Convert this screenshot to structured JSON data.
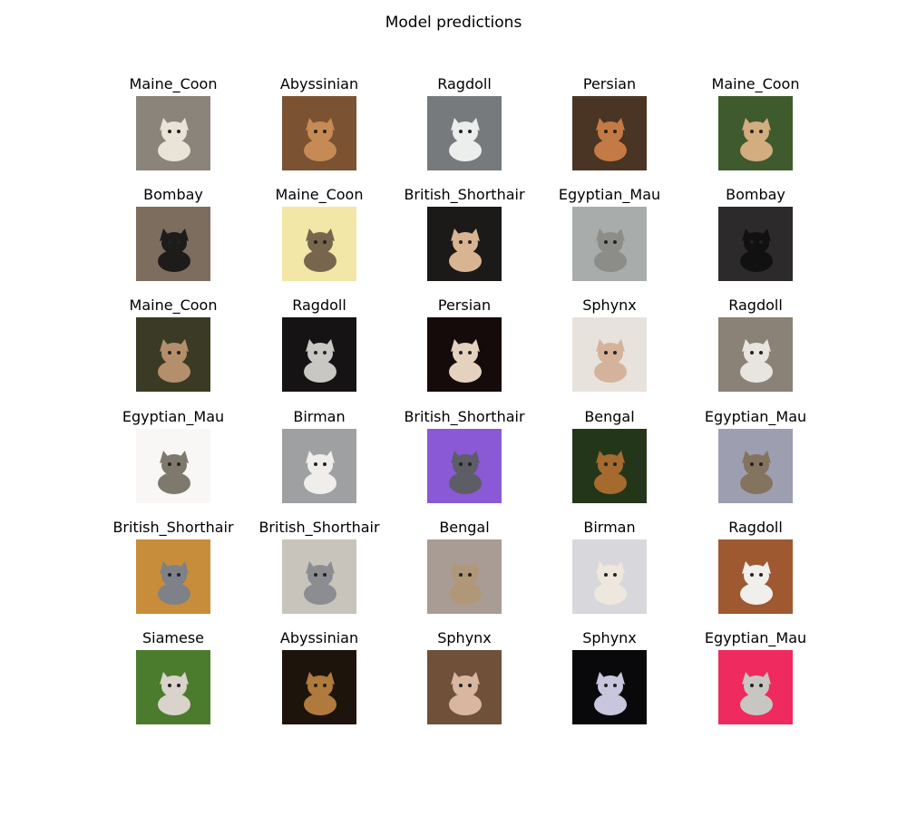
{
  "title": "Model predictions",
  "grid": {
    "rows": 6,
    "cols": 5,
    "items": [
      {
        "label": "Maine_Coon",
        "bg": "#8b847a",
        "cat": "#e9e3d8"
      },
      {
        "label": "Abyssinian",
        "bg": "#7b5232",
        "cat": "#c68b55"
      },
      {
        "label": "Ragdoll",
        "bg": "#777a7c",
        "cat": "#eceeee"
      },
      {
        "label": "Persian",
        "bg": "#4a3423",
        "cat": "#c47a44"
      },
      {
        "label": "Maine_Coon",
        "bg": "#3f5a2d",
        "cat": "#d3ad80"
      },
      {
        "label": "Bombay",
        "bg": "#7d6d5e",
        "cat": "#1e1c1b"
      },
      {
        "label": "Maine_Coon",
        "bg": "#f2e7a7",
        "cat": "#77664d"
      },
      {
        "label": "British_Shorthair",
        "bg": "#1b1a19",
        "cat": "#d8b492"
      },
      {
        "label": "Egyptian_Mau",
        "bg": "#a8adac",
        "cat": "#8c8c89"
      },
      {
        "label": "Bombay",
        "bg": "#2c2a2b",
        "cat": "#111111"
      },
      {
        "label": "Maine_Coon",
        "bg": "#3b3a25",
        "cat": "#b3906b"
      },
      {
        "label": "Ragdoll",
        "bg": "#151313",
        "cat": "#c9c7c3"
      },
      {
        "label": "Persian",
        "bg": "#160b0b",
        "cat": "#e4d2bf"
      },
      {
        "label": "Sphynx",
        "bg": "#e8e2dc",
        "cat": "#d5b39b"
      },
      {
        "label": "Ragdoll",
        "bg": "#8a8177",
        "cat": "#e8e5e1"
      },
      {
        "label": "Egyptian_Mau",
        "bg": "#f8f7f5",
        "cat": "#7f786d"
      },
      {
        "label": "Birman",
        "bg": "#9fa0a1",
        "cat": "#efeeeb"
      },
      {
        "label": "British_Shorthair",
        "bg": "#8a59d6",
        "cat": "#5d5d66"
      },
      {
        "label": "Bengal",
        "bg": "#24361a",
        "cat": "#a46a2e"
      },
      {
        "label": "Egyptian_Mau",
        "bg": "#9d9eb0",
        "cat": "#83735f"
      },
      {
        "label": "British_Shorthair",
        "bg": "#c88d3a",
        "cat": "#7f8188"
      },
      {
        "label": "British_Shorthair",
        "bg": "#c9c4bb",
        "cat": "#8b8d90"
      },
      {
        "label": "Bengal",
        "bg": "#a89c94",
        "cat": "#b09778"
      },
      {
        "label": "Birman",
        "bg": "#d8d8dc",
        "cat": "#eee7dd"
      },
      {
        "label": "Ragdoll",
        "bg": "#9e5930",
        "cat": "#f0efec"
      },
      {
        "label": "Siamese",
        "bg": "#4b7b2c",
        "cat": "#d9d3cb"
      },
      {
        "label": "Abyssinian",
        "bg": "#1d140c",
        "cat": "#b07a3c"
      },
      {
        "label": "Sphynx",
        "bg": "#6f5038",
        "cat": "#d8b6a0"
      },
      {
        "label": "Sphynx",
        "bg": "#09090b",
        "cat": "#c8c6dd"
      },
      {
        "label": "Egyptian_Mau",
        "bg": "#ef2a5e",
        "cat": "#c8c6c3"
      }
    ]
  }
}
